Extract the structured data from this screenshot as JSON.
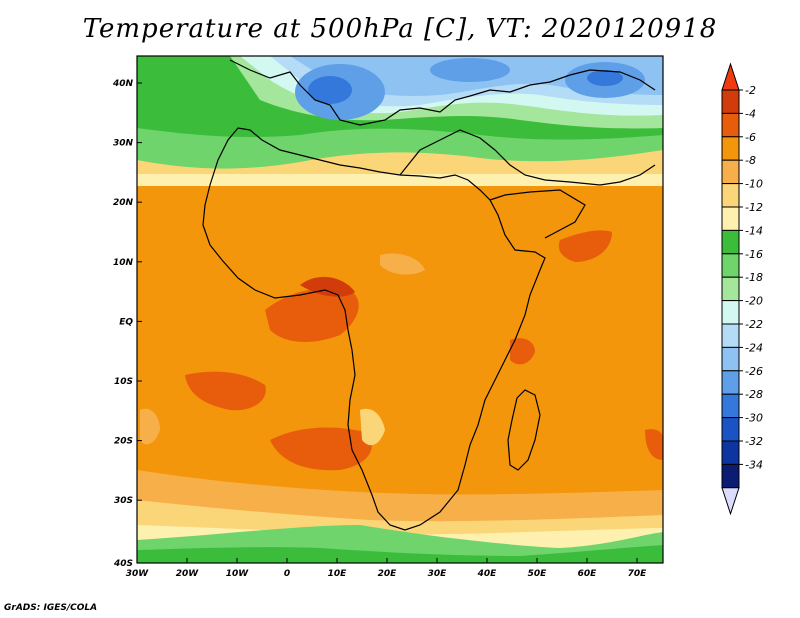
{
  "title": "Temperature at 500hPa [C], VT: 2020120918",
  "footer": "GrADS: IGES/COLA",
  "map": {
    "lat_labels": [
      "40N",
      "30N",
      "20N",
      "10N",
      "EQ",
      "10S",
      "20S",
      "30S",
      "40S"
    ],
    "lon_labels": [
      "30W",
      "20W",
      "10W",
      "0",
      "10E",
      "20E",
      "30E",
      "40E",
      "50E",
      "60E",
      "70E"
    ]
  },
  "colorbar": {
    "labels": [
      "-2",
      "-4",
      "-6",
      "-8",
      "-10",
      "-12",
      "-14",
      "-16",
      "-18",
      "-20",
      "-22",
      "-24",
      "-26",
      "-28",
      "-30",
      "-32",
      "-34"
    ],
    "colors": [
      "#d23c0b",
      "#e85d0c",
      "#f3960b",
      "#f7b049",
      "#fbd679",
      "#fef1b0",
      "#3bbd3b",
      "#6fd46c",
      "#a4e79c",
      "#d3f8f2",
      "#b4dcf7",
      "#8ec2f2",
      "#5f9fe8",
      "#3478dc",
      "#1a54c4",
      "#0c35a0",
      "#0a1d73"
    ],
    "top_arrow_color": "#ef3b0f",
    "bottom_arrow_color": "#dcdcfc"
  }
}
